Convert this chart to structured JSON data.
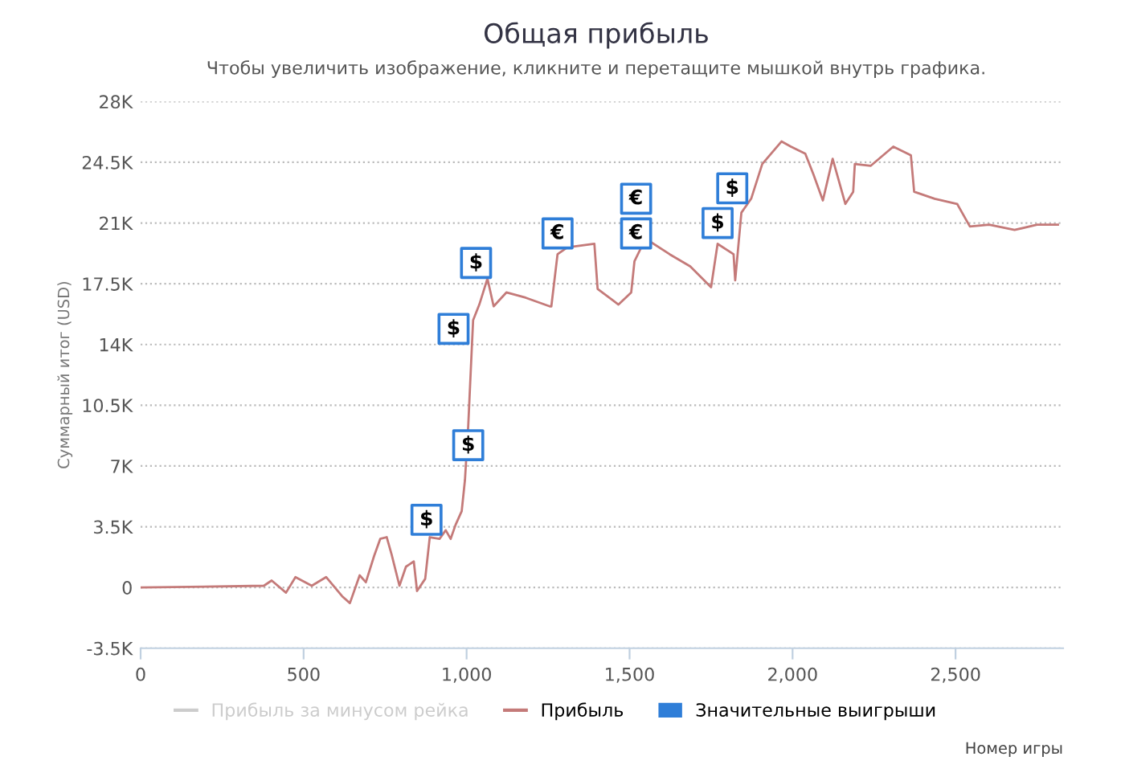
{
  "chart_data": {
    "type": "line",
    "title": "Общая прибыль",
    "subtitle": "Чтобы увеличить изображение, кликните и перетащите мышкой внутрь графика.",
    "xlabel": "Номер игры",
    "ylabel": "Суммарный итог (USD)",
    "xlim": [
      0,
      2830
    ],
    "ylim": [
      -3500,
      28000
    ],
    "xticks": [
      0,
      500,
      {
        "value": 1000,
        "label": "1,000"
      },
      {
        "value": 1500,
        "label": "1,500"
      },
      {
        "value": 2000,
        "label": "2,000"
      },
      {
        "value": 2500,
        "label": "2,500"
      }
    ],
    "yticks": [
      {
        "value": -3500,
        "label": "-3.5K"
      },
      0,
      {
        "value": 3500,
        "label": "3.5K"
      },
      {
        "value": 7000,
        "label": "7K"
      },
      {
        "value": 10500,
        "label": "10.5K"
      },
      {
        "value": 14000,
        "label": "14K"
      },
      {
        "value": 17500,
        "label": "17.5K"
      },
      {
        "value": 21000,
        "label": "21K"
      },
      {
        "value": 24500,
        "label": "24.5K"
      },
      {
        "value": 28000,
        "label": "28K"
      }
    ],
    "grid": "y",
    "legend": "bottom",
    "series": [
      {
        "name": "Прибыль за минусом рейка",
        "color": "#cccccc"
      },
      {
        "name": "Прибыль",
        "color": "#c47a79",
        "x": [
          0,
          378,
          402,
          446,
          475,
          525,
          569,
          618,
          642,
          672,
          691,
          716,
          735,
          755,
          770,
          794,
          814,
          838,
          848,
          873,
          887,
          917,
          936,
          951,
          966,
          985,
          995,
          1005,
          1015,
          1020,
          1039,
          1064,
          1083,
          1122,
          1181,
          1255,
          1260,
          1279,
          1309,
          1392,
          1402,
          1466,
          1505,
          1515,
          1549,
          1623,
          1686,
          1750,
          1770,
          1819,
          1824,
          1843,
          1873,
          1907,
          1966,
          1995,
          2039,
          2064,
          2093,
          2123,
          2162,
          2186,
          2191,
          2240,
          2309,
          2363,
          2373,
          2436,
          2505,
          2544,
          2603,
          2681,
          2750,
          2814
        ],
        "values": [
          0,
          100,
          400,
          -300,
          600,
          100,
          600,
          -500,
          -900,
          700,
          300,
          1800,
          2800,
          2900,
          1900,
          100,
          1200,
          1500,
          -200,
          500,
          2900,
          2800,
          3300,
          2800,
          3600,
          4400,
          6200,
          9300,
          13400,
          15400,
          16300,
          17800,
          16200,
          17000,
          16700,
          16200,
          16200,
          19200,
          19600,
          19800,
          17200,
          16300,
          17000,
          18800,
          20100,
          19200,
          18500,
          17300,
          19800,
          19200,
          17700,
          21600,
          22400,
          24400,
          25700,
          25400,
          25000,
          23800,
          22300,
          24700,
          22100,
          22800,
          24400,
          24300,
          25400,
          24900,
          22800,
          22400,
          22100,
          20800,
          20900,
          20600,
          20900,
          20900
        ]
      },
      {
        "name": "Значительные выигрыши",
        "type": "scatter",
        "marker": "square",
        "color": "#2f7ed8",
        "x": [
          877,
          1005,
          960,
          1029,
          1279,
          1520,
          1520,
          1770,
          1815
        ],
        "values": [
          3900,
          8200,
          14900,
          18700,
          20400,
          22400,
          20400,
          21000,
          23000
        ]
      }
    ],
    "annotations": [
      {
        "text": "$",
        "x": 877,
        "y": 3900
      },
      {
        "text": "$",
        "x": 1005,
        "y": 8200
      },
      {
        "text": "$",
        "x": 960,
        "y": 14900
      },
      {
        "text": "$",
        "x": 1029,
        "y": 18700
      },
      {
        "text": "€",
        "x": 1279,
        "y": 20400
      },
      {
        "text": "€",
        "x": 1520,
        "y": 22400
      },
      {
        "text": "€",
        "x": 1520,
        "y": 20400
      },
      {
        "text": "$",
        "x": 1770,
        "y": 21000
      },
      {
        "text": "$",
        "x": 1815,
        "y": 23000
      }
    ]
  }
}
